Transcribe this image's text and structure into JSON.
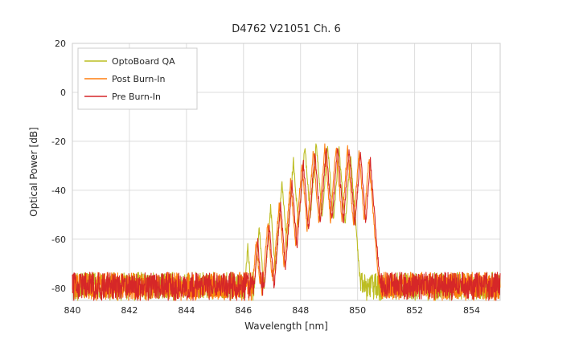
{
  "chart_data": {
    "type": "line",
    "title": "D4762 V21051 Ch. 6",
    "xlabel": "Wavelength [nm]",
    "ylabel": "Optical Power [dB]",
    "xlim": [
      840,
      855
    ],
    "ylim": [
      -85,
      20
    ],
    "xticks": [
      840,
      842,
      844,
      846,
      848,
      850,
      852,
      854
    ],
    "yticks": [
      20,
      0,
      -20,
      -40,
      -60,
      -80
    ],
    "grid": true,
    "legend": {
      "position": "upper-left",
      "entries": [
        "OptoBoard QA",
        "Post Burn-In",
        "Pre Burn-In"
      ]
    },
    "noise_floor": {
      "mean_db": -79,
      "amplitude_db": 5.5
    },
    "mode_slope_db_per_nm": 150,
    "sample_step_nm": 0.01,
    "series": [
      {
        "name": "OptoBoard QA",
        "color": "#bcbd22",
        "seed": 11,
        "peaks": [
          [
            846.15,
            -63
          ],
          [
            846.55,
            -55
          ],
          [
            846.95,
            -47
          ],
          [
            847.35,
            -37
          ],
          [
            847.75,
            -28
          ],
          [
            848.15,
            -22
          ],
          [
            848.55,
            -20.5
          ],
          [
            848.95,
            -21.5
          ],
          [
            849.35,
            -23
          ],
          [
            849.75,
            -26
          ]
        ]
      },
      {
        "name": "Post Burn-In",
        "color": "#ff7f0e",
        "seed": 22,
        "peaks": [
          [
            846.45,
            -60
          ],
          [
            846.85,
            -53
          ],
          [
            847.25,
            -45
          ],
          [
            847.65,
            -36
          ],
          [
            848.05,
            -28.5
          ],
          [
            848.45,
            -24
          ],
          [
            848.85,
            -22.5
          ],
          [
            849.25,
            -22
          ],
          [
            849.65,
            -23
          ],
          [
            850.05,
            -24.5
          ],
          [
            850.4,
            -27
          ]
        ]
      },
      {
        "name": "Pre Burn-In",
        "color": "#d62728",
        "seed": 33,
        "peaks": [
          [
            846.5,
            -61
          ],
          [
            846.9,
            -54
          ],
          [
            847.3,
            -46
          ],
          [
            847.7,
            -37
          ],
          [
            848.1,
            -29
          ],
          [
            848.5,
            -24.5
          ],
          [
            848.9,
            -23
          ],
          [
            849.3,
            -22.5
          ],
          [
            849.7,
            -23.5
          ],
          [
            850.1,
            -25
          ],
          [
            850.45,
            -28
          ]
        ]
      }
    ]
  }
}
